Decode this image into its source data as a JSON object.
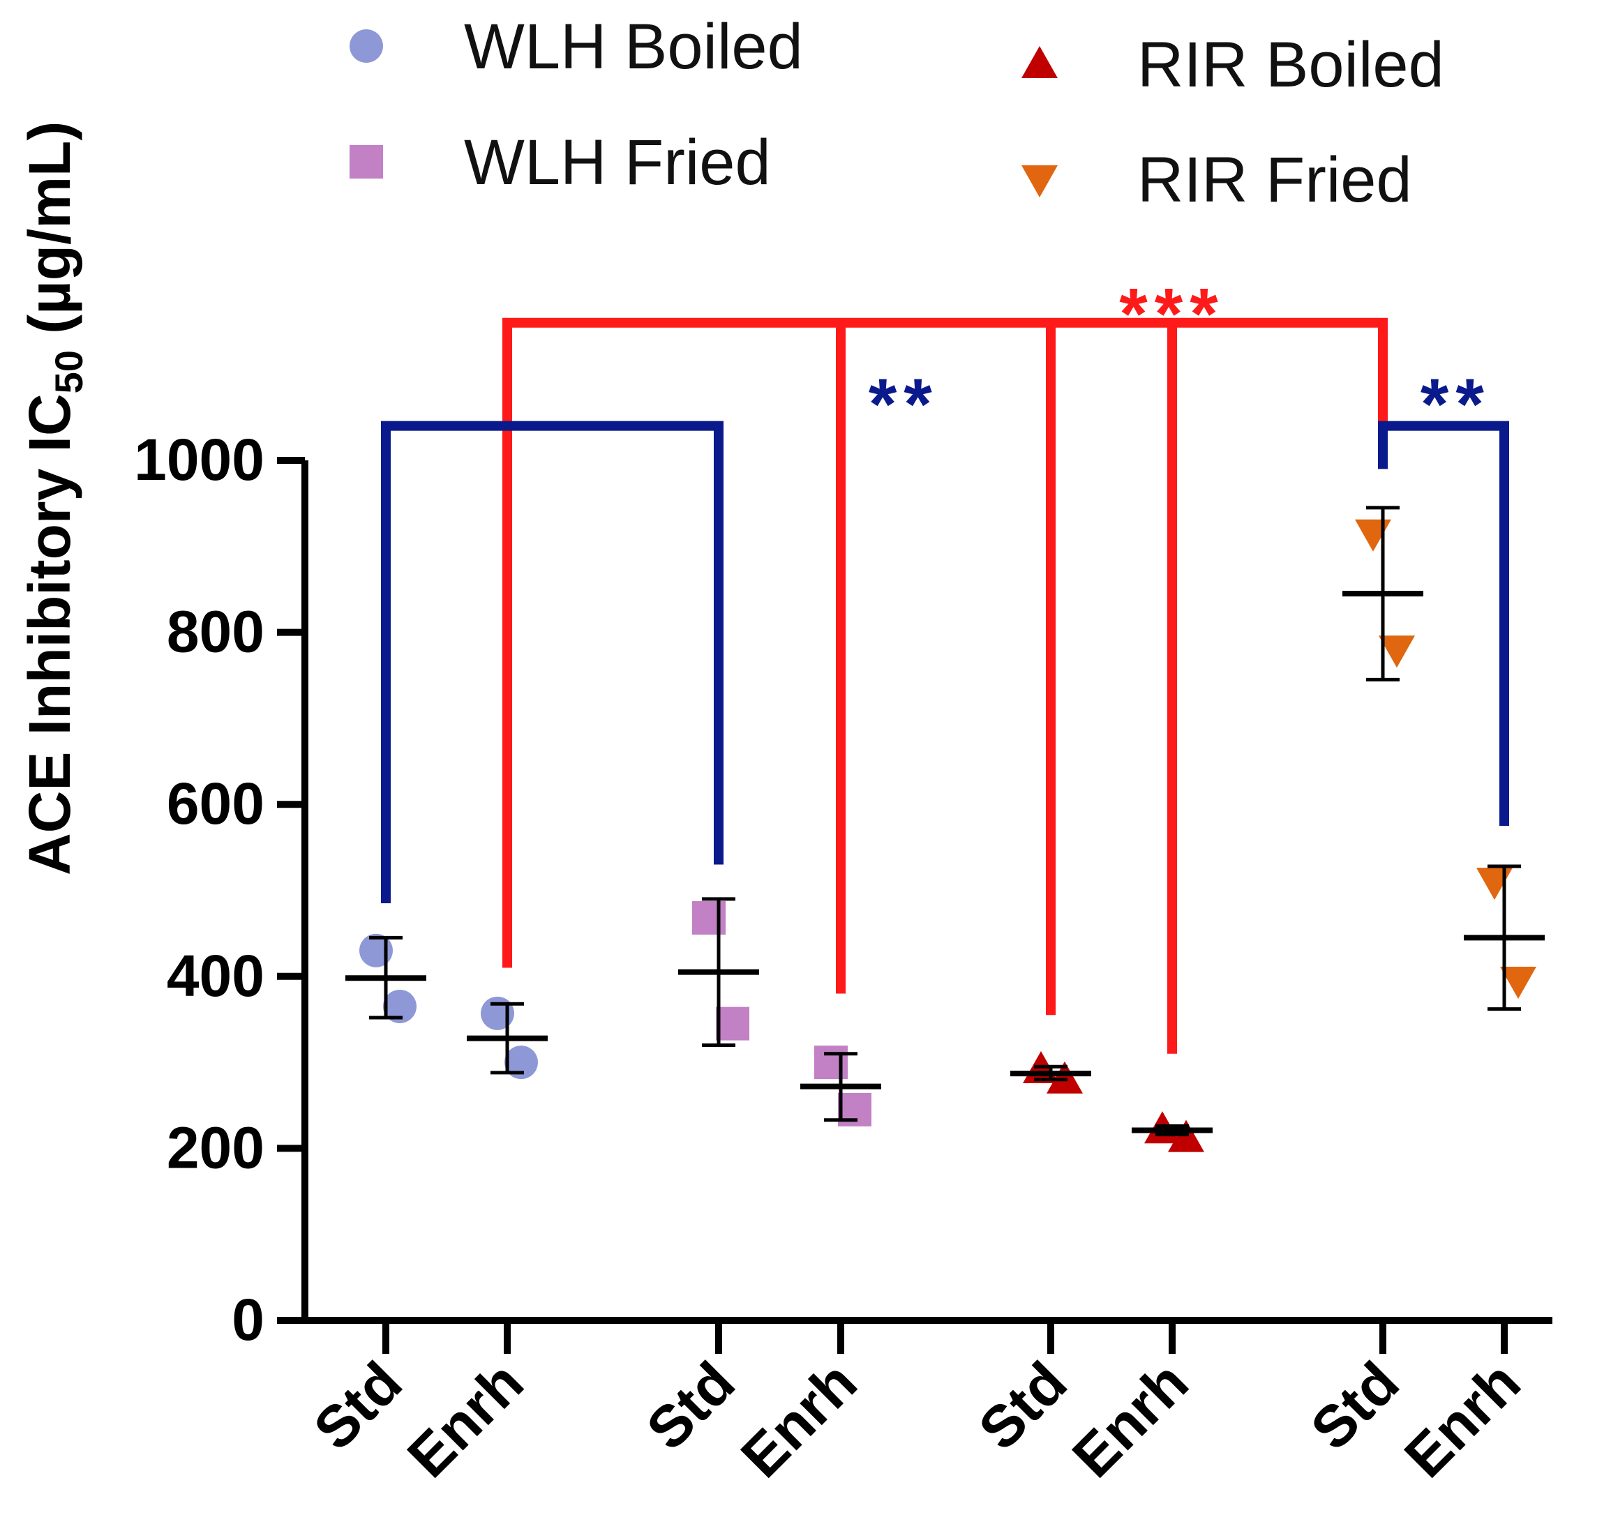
{
  "chart_data": {
    "type": "scatter",
    "title": "",
    "xlabel": "",
    "ylabel": "ACE Inhibitory IC",
    "ylabel_subscript": "50",
    "ylabel_unit": " (µg/mL)",
    "ylim": [
      0,
      1000
    ],
    "yticks": [
      0,
      200,
      400,
      600,
      800,
      1000
    ],
    "categories": [
      "Std",
      "Enrh",
      "Std",
      "Enrh",
      "Std",
      "Enrh",
      "Std",
      "Enrh"
    ],
    "colors": {
      "wlh_boiled": "#8e98d6",
      "wlh_fried": "#c280c5",
      "rir_boiled": "#c00000",
      "rir_fried": "#e0660f",
      "sig_red": "#ff1a1a",
      "sig_blue": "#0a1a8c",
      "axis": "#000000"
    },
    "series": [
      {
        "name": "WLH Boiled",
        "color_key": "wlh_boiled",
        "marker": "circle",
        "groups": [
          {
            "category_index": 0,
            "label": "Std",
            "points": [
              430,
              365
            ],
            "mean": 398,
            "err_low": 352,
            "err_high": 445
          },
          {
            "category_index": 1,
            "label": "Enrh",
            "points": [
              357,
              300
            ],
            "mean": 328,
            "err_low": 288,
            "err_high": 368
          }
        ]
      },
      {
        "name": "WLH Fried",
        "color_key": "wlh_fried",
        "marker": "square",
        "groups": [
          {
            "category_index": 2,
            "label": "Std",
            "points": [
              468,
              345
            ],
            "mean": 405,
            "err_low": 320,
            "err_high": 490
          },
          {
            "category_index": 3,
            "label": "Enrh",
            "points": [
              300,
              245
            ],
            "mean": 272,
            "err_low": 233,
            "err_high": 310
          }
        ]
      },
      {
        "name": "RIR Boiled",
        "color_key": "rir_boiled",
        "marker": "triangle-up",
        "groups": [
          {
            "category_index": 4,
            "label": "Std",
            "points": [
              292,
              280
            ],
            "mean": 287,
            "err_low": 280,
            "err_high": 295
          },
          {
            "category_index": 5,
            "label": "Enrh",
            "points": [
              222,
              212
            ],
            "mean": 221,
            "err_low": 216,
            "err_high": 226
          }
        ]
      },
      {
        "name": "RIR Fried",
        "color_key": "rir_fried",
        "marker": "triangle-down",
        "groups": [
          {
            "category_index": 6,
            "label": "Std",
            "points": [
              915,
              780
            ],
            "mean": 845,
            "err_low": 745,
            "err_high": 945
          },
          {
            "category_index": 7,
            "label": "Enrh",
            "points": [
              510,
              395
            ],
            "mean": 445,
            "err_low": 362,
            "err_high": 528
          }
        ]
      }
    ],
    "legend": [
      {
        "label": "WLH Boiled",
        "color_key": "wlh_boiled",
        "marker": "circle"
      },
      {
        "label": "WLH Fried",
        "color_key": "wlh_fried",
        "marker": "square"
      },
      {
        "label": "RIR Boiled",
        "color_key": "rir_boiled",
        "marker": "triangle-up"
      },
      {
        "label": "RIR Fried",
        "color_key": "rir_fried",
        "marker": "triangle-down"
      }
    ],
    "significance": [
      {
        "label": "***",
        "color_key": "sig_red",
        "bracket_y": 1160,
        "legs": [
          {
            "category_index": 1,
            "end": 410
          },
          {
            "category_index": 3,
            "end": 380
          },
          {
            "category_index": 4,
            "end": 355
          },
          {
            "category_index": 5,
            "end": 310
          },
          {
            "category_index": 6,
            "end": 1045
          }
        ],
        "label_anchor_category": 5.0,
        "label_y": 1190
      },
      {
        "label": "**",
        "color_key": "sig_blue",
        "bracket_y": 1040,
        "legs": [
          {
            "category_index": 0,
            "end": 485
          },
          {
            "category_index": 2,
            "end": 530
          }
        ],
        "label_anchor_category": 3.3,
        "label_y": 1085
      },
      {
        "label": "**",
        "color_key": "sig_blue",
        "bracket_y": 1040,
        "legs": [
          {
            "category_index": 6,
            "end": 990
          },
          {
            "category_index": 7,
            "end": 575
          }
        ],
        "label_anchor_category": 6.6,
        "label_y": 1085
      }
    ]
  }
}
